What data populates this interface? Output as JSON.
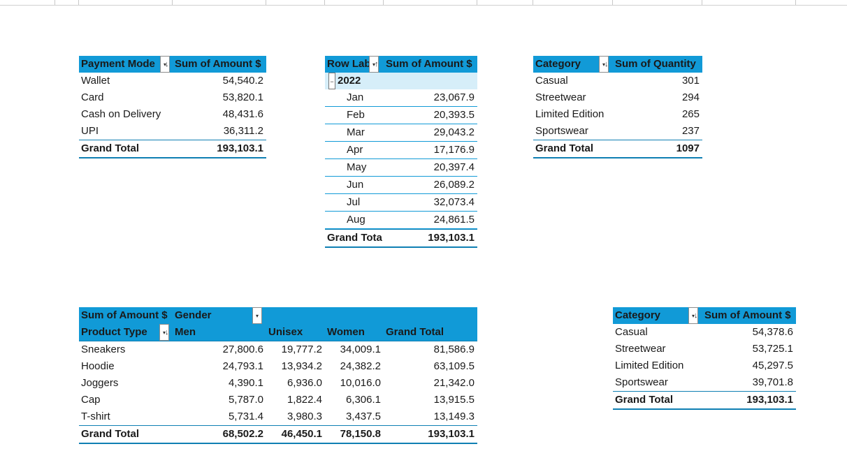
{
  "payment": {
    "header": {
      "col1": "Payment Mode",
      "col2": "Sum of Amount $"
    },
    "rows": [
      {
        "label": "Wallet",
        "value": "54,540.2"
      },
      {
        "label": "Card",
        "value": "53,820.1"
      },
      {
        "label": "Cash on Delivery",
        "value": "48,431.6"
      },
      {
        "label": "UPI",
        "value": "36,311.2"
      }
    ],
    "total": {
      "label": "Grand Total",
      "value": "193,103.1"
    }
  },
  "monthly": {
    "header": {
      "col1": "Row Lab",
      "col2": "Sum of Amount $"
    },
    "year": "2022",
    "rows": [
      {
        "label": "Jan",
        "value": "23,067.9"
      },
      {
        "label": "Feb",
        "value": "20,393.5"
      },
      {
        "label": "Mar",
        "value": "29,043.2"
      },
      {
        "label": "Apr",
        "value": "17,176.9"
      },
      {
        "label": "May",
        "value": "20,397.4"
      },
      {
        "label": "Jun",
        "value": "26,089.2"
      },
      {
        "label": "Jul",
        "value": "32,073.4"
      },
      {
        "label": "Aug",
        "value": "24,861.5"
      }
    ],
    "total": {
      "label": "Grand Tota",
      "value": "193,103.1"
    }
  },
  "quantity": {
    "header": {
      "col1": "Category",
      "col2": "Sum of Quantity"
    },
    "rows": [
      {
        "label": "Casual",
        "value": "301"
      },
      {
        "label": "Streetwear",
        "value": "294"
      },
      {
        "label": "Limited Edition",
        "value": "265"
      },
      {
        "label": "Sportswear",
        "value": "237"
      }
    ],
    "total": {
      "label": "Grand Total",
      "value": "1097"
    }
  },
  "gender": {
    "header1": {
      "measure": "Sum of Amount $",
      "field": "Gender"
    },
    "header2": {
      "rowfield": "Product Type",
      "men": "Men",
      "unisex": "Unisex",
      "women": "Women",
      "total": "Grand Total"
    },
    "rows": [
      {
        "label": "Sneakers",
        "men": "27,800.6",
        "unisex": "19,777.2",
        "women": "34,009.1",
        "total": "81,586.9"
      },
      {
        "label": "Hoodie",
        "men": "24,793.1",
        "unisex": "13,934.2",
        "women": "24,382.2",
        "total": "63,109.5"
      },
      {
        "label": "Joggers",
        "men": "4,390.1",
        "unisex": "6,936.0",
        "women": "10,016.0",
        "total": "21,342.0"
      },
      {
        "label": "Cap",
        "men": "5,787.0",
        "unisex": "1,822.4",
        "women": "6,306.1",
        "total": "13,915.5"
      },
      {
        "label": "T-shirt",
        "men": "5,731.4",
        "unisex": "3,980.3",
        "women": "3,437.5",
        "total": "13,149.3"
      }
    ],
    "total": {
      "label": "Grand Total",
      "men": "68,502.2",
      "unisex": "46,450.1",
      "women": "78,150.8",
      "total": "193,103.1"
    }
  },
  "category_amount": {
    "header": {
      "col1": "Category",
      "col2": "Sum of Amount $"
    },
    "rows": [
      {
        "label": "Casual",
        "value": "54,378.6"
      },
      {
        "label": "Streetwear",
        "value": "53,725.1"
      },
      {
        "label": "Limited Edition",
        "value": "45,297.5"
      },
      {
        "label": "Sportswear",
        "value": "39,701.8"
      }
    ],
    "total": {
      "label": "Grand Total",
      "value": "193,103.1"
    }
  }
}
